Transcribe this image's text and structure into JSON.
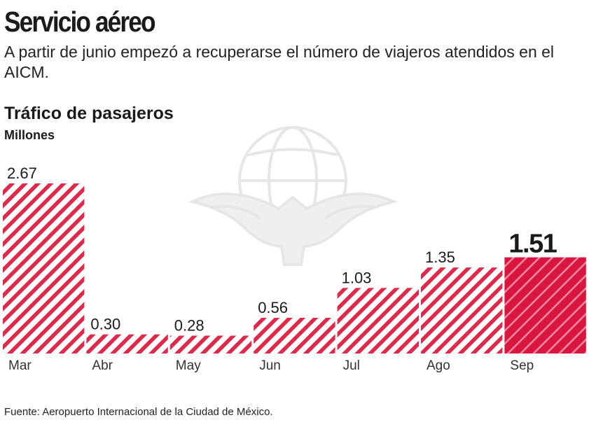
{
  "header": {
    "title": "Servicio aéreo",
    "subtitle": "A partir de junio empezó a recuperarse el número de viajeros atendidos en el AICM."
  },
  "chart_data": {
    "type": "bar",
    "title": "Tráfico de pasajeros",
    "ylabel": "Millones",
    "xlabel": "",
    "categories": [
      "Mar",
      "Abr",
      "May",
      "Jun",
      "Jul",
      "Ago",
      "Sep"
    ],
    "values": [
      2.67,
      0.3,
      0.28,
      0.56,
      1.03,
      1.35,
      1.51
    ],
    "value_labels": [
      "2.67",
      "0.30",
      "0.28",
      "0.56",
      "1.03",
      "1.35",
      "1.51"
    ],
    "highlight_index": 6,
    "bar_color": "#e0284a",
    "highlight_color": "#d9163f",
    "fill_pattern": "diagonal-stripes",
    "ylim": [
      0,
      2.67
    ],
    "grid": false,
    "legend": "none"
  },
  "watermark": {
    "icon": "eagle-globe-logo-icon",
    "color": "#e6e6e6"
  },
  "footer": {
    "source": "Fuente: Aeropuerto Internacional de la Ciudad de México."
  }
}
